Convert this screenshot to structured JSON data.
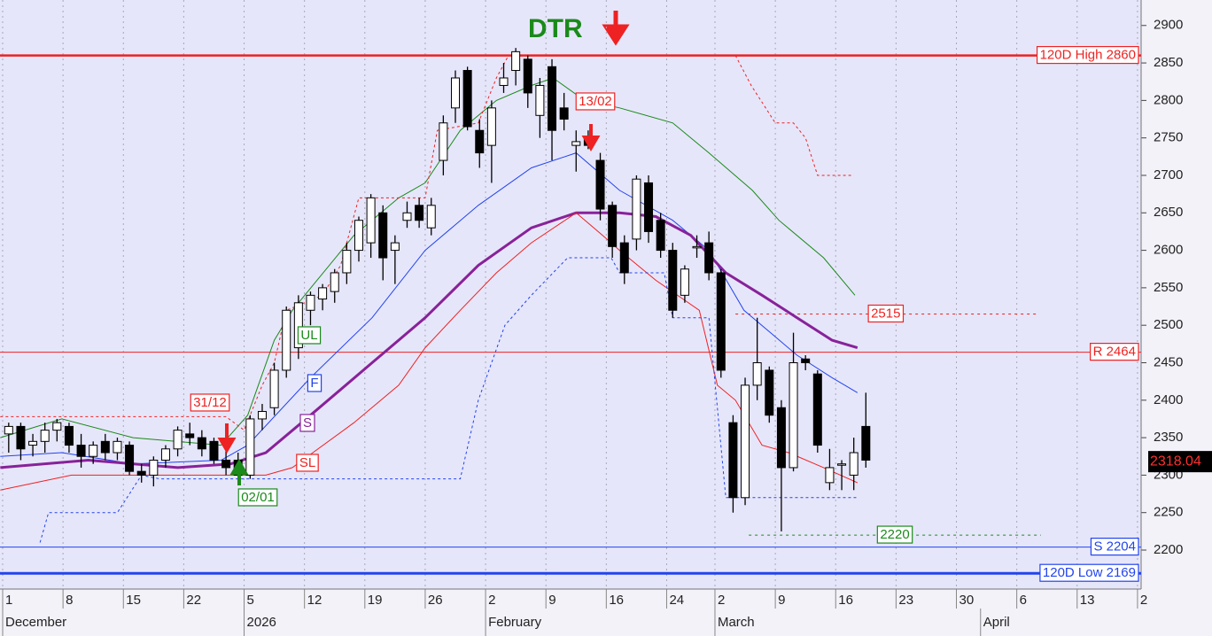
{
  "chart_data": {
    "type": "candlestick",
    "signal": "DTR",
    "ylim": [
      2148,
      2934
    ],
    "yticks": [
      2200,
      2250,
      2300,
      2350,
      2400,
      2450,
      2500,
      2550,
      2600,
      2650,
      2700,
      2750,
      2800,
      2850,
      2900
    ],
    "xlim": [
      -0.72,
      93.8
    ],
    "xticks": [
      {
        "value": -0.5,
        "label": "1"
      },
      {
        "value": 4.5,
        "label": "8"
      },
      {
        "value": 9.5,
        "label": "15"
      },
      {
        "value": 14.5,
        "label": "22"
      },
      {
        "value": 19.5,
        "label": "5"
      },
      {
        "value": 24.5,
        "label": "12"
      },
      {
        "value": 29.5,
        "label": "19"
      },
      {
        "value": 34.5,
        "label": "26"
      },
      {
        "value": 39.5,
        "label": "2"
      },
      {
        "value": 44.5,
        "label": "9"
      },
      {
        "value": 49.5,
        "label": "16"
      },
      {
        "value": 54.5,
        "label": "24"
      },
      {
        "value": 58.5,
        "label": "2"
      },
      {
        "value": 63.5,
        "label": "9"
      },
      {
        "value": 68.5,
        "label": "16"
      },
      {
        "value": 73.5,
        "label": "23"
      },
      {
        "value": 78.5,
        "label": "30"
      },
      {
        "value": 83.5,
        "label": "6"
      },
      {
        "value": 88.5,
        "label": "13"
      },
      {
        "value": 93.5,
        "label": "2"
      }
    ],
    "months": [
      {
        "value": -0.5,
        "label": "December"
      },
      {
        "value": 19.5,
        "label": "2026"
      },
      {
        "value": 39.5,
        "label": "February"
      },
      {
        "value": 58.5,
        "label": "March"
      },
      {
        "value": 80.5,
        "label": "April"
      }
    ],
    "grid": true,
    "ohlc": [
      [
        2355,
        2370,
        2330,
        2365
      ],
      [
        2365,
        2370,
        2320,
        2335
      ],
      [
        2340,
        2355,
        2325,
        2345
      ],
      [
        2345,
        2370,
        2330,
        2360
      ],
      [
        2360,
        2375,
        2345,
        2370
      ],
      [
        2365,
        2370,
        2330,
        2340
      ],
      [
        2340,
        2355,
        2310,
        2325
      ],
      [
        2325,
        2345,
        2315,
        2340
      ],
      [
        2345,
        2355,
        2320,
        2330
      ],
      [
        2330,
        2350,
        2320,
        2345
      ],
      [
        2340,
        2345,
        2300,
        2305
      ],
      [
        2305,
        2315,
        2290,
        2300
      ],
      [
        2300,
        2325,
        2285,
        2320
      ],
      [
        2320,
        2340,
        2310,
        2335
      ],
      [
        2335,
        2365,
        2325,
        2360
      ],
      [
        2355,
        2370,
        2340,
        2350
      ],
      [
        2350,
        2360,
        2325,
        2335
      ],
      [
        2345,
        2350,
        2315,
        2320
      ],
      [
        2320,
        2340,
        2300,
        2310
      ],
      [
        2320,
        2330,
        2290,
        2300
      ],
      [
        2300,
        2380,
        2295,
        2375
      ],
      [
        2375,
        2395,
        2360,
        2385
      ],
      [
        2390,
        2450,
        2380,
        2440
      ],
      [
        2440,
        2525,
        2430,
        2520
      ],
      [
        2470,
        2540,
        2455,
        2530
      ],
      [
        2520,
        2545,
        2500,
        2540
      ],
      [
        2535,
        2555,
        2520,
        2550
      ],
      [
        2545,
        2575,
        2530,
        2570
      ],
      [
        2570,
        2610,
        2555,
        2600
      ],
      [
        2600,
        2645,
        2585,
        2640
      ],
      [
        2610,
        2675,
        2590,
        2670
      ],
      [
        2650,
        2660,
        2560,
        2590
      ],
      [
        2600,
        2620,
        2555,
        2610
      ],
      [
        2640,
        2665,
        2630,
        2650
      ],
      [
        2660,
        2670,
        2630,
        2640
      ],
      [
        2630,
        2670,
        2620,
        2660
      ],
      [
        2720,
        2780,
        2700,
        2770
      ],
      [
        2790,
        2840,
        2770,
        2830
      ],
      [
        2840,
        2845,
        2760,
        2765
      ],
      [
        2760,
        2775,
        2710,
        2730
      ],
      [
        2740,
        2800,
        2690,
        2790
      ],
      [
        2820,
        2850,
        2810,
        2830
      ],
      [
        2840,
        2870,
        2820,
        2865
      ],
      [
        2855,
        2860,
        2790,
        2810
      ],
      [
        2780,
        2830,
        2750,
        2820
      ],
      [
        2845,
        2855,
        2720,
        2760
      ],
      [
        2790,
        2810,
        2760,
        2775
      ],
      [
        2740,
        2760,
        2705,
        2745
      ],
      [
        2750,
        2760,
        2735,
        2740
      ],
      [
        2720,
        2730,
        2640,
        2655
      ],
      [
        2660,
        2665,
        2590,
        2605
      ],
      [
        2610,
        2620,
        2555,
        2570
      ],
      [
        2615,
        2700,
        2600,
        2695
      ],
      [
        2690,
        2700,
        2610,
        2625
      ],
      [
        2640,
        2650,
        2590,
        2600
      ],
      [
        2600,
        2610,
        2510,
        2520
      ],
      [
        2540,
        2580,
        2530,
        2575
      ],
      [
        2605,
        2620,
        2590,
        2605
      ],
      [
        2610,
        2625,
        2560,
        2570
      ],
      [
        2570,
        2575,
        2430,
        2440
      ],
      [
        2370,
        2380,
        2250,
        2270
      ],
      [
        2270,
        2430,
        2260,
        2420
      ],
      [
        2420,
        2510,
        2400,
        2450
      ],
      [
        2440,
        2445,
        2370,
        2380
      ],
      [
        2390,
        2400,
        2225,
        2310
      ],
      [
        2310,
        2490,
        2305,
        2450
      ],
      [
        2455,
        2460,
        2440,
        2450
      ],
      [
        2435,
        2440,
        2330,
        2340
      ],
      [
        2290,
        2335,
        2280,
        2310
      ],
      [
        2315,
        2320,
        2280,
        2315
      ],
      [
        2300,
        2350,
        2280,
        2330
      ],
      [
        2365,
        2410,
        2310,
        2320
      ]
    ],
    "series": [
      {
        "name": "UL",
        "color": "#1a8a1a",
        "width": 1,
        "x": [
          -0.7,
          4.4,
          10.3,
          17.6,
          19.8,
          22,
          23.5,
          28.6,
          32.3,
          34.5,
          37.4,
          40.4,
          43.3,
          45.1,
          47.7,
          50.6,
          55,
          58,
          61.6,
          63.8,
          67.5,
          70.1
        ],
        "values": [
          2350,
          2375,
          2350,
          2340,
          2380,
          2480,
          2520,
          2620,
          2670,
          2690,
          2760,
          2800,
          2820,
          2830,
          2800,
          2790,
          2770,
          2730,
          2680,
          2640,
          2590,
          2540
        ]
      },
      {
        "name": "F",
        "color": "#2244ee",
        "width": 1,
        "x": [
          -0.7,
          4.4,
          10.3,
          17.6,
          19.8,
          25,
          30.1,
          34.5,
          38.9,
          43.3,
          47,
          50.6,
          55,
          58,
          60.9,
          63.1,
          65.3,
          68.2,
          70.3
        ],
        "values": [
          2325,
          2330,
          2315,
          2320,
          2340,
          2430,
          2510,
          2600,
          2660,
          2710,
          2730,
          2680,
          2640,
          2600,
          2520,
          2490,
          2460,
          2430,
          2410
        ]
      },
      {
        "name": "S",
        "color": "#882299",
        "width": 3,
        "x": [
          -0.7,
          6.6,
          14,
          18.4,
          21.3,
          25,
          30.1,
          34.5,
          38.9,
          43.3,
          47,
          50.6,
          53.6,
          56.5,
          59.4,
          62.4,
          65.3,
          68.2,
          70.3
        ],
        "values": [
          2310,
          2320,
          2310,
          2315,
          2330,
          2380,
          2450,
          2510,
          2580,
          2630,
          2650,
          2650,
          2645,
          2620,
          2570,
          2540,
          2510,
          2480,
          2470
        ]
      },
      {
        "name": "SL",
        "color": "#ee2222",
        "width": 1,
        "x": [
          -0.7,
          5.2,
          10.3,
          17.6,
          21.3,
          23.5,
          28.6,
          32.3,
          34.5,
          37.4,
          40.4,
          43.3,
          47,
          49.2,
          50.6,
          53.6,
          57.2,
          58.7,
          60.2,
          62.4,
          64.6,
          67.5,
          70.3
        ],
        "values": [
          2280,
          2300,
          2300,
          2300,
          2300,
          2310,
          2370,
          2420,
          2470,
          2520,
          2570,
          2610,
          2650,
          2620,
          2600,
          2560,
          2520,
          2420,
          2400,
          2340,
          2330,
          2310,
          2290
        ]
      },
      {
        "color": "#ee2222",
        "width": 1,
        "dash": true,
        "x": [
          -0.7,
          18,
          19.5,
          21,
          22,
          23,
          26,
          27.5,
          29,
          34.5,
          35.5,
          38.9,
          40.4,
          41.4,
          null,
          60.2,
          61.5,
          63.5,
          65,
          66,
          67,
          70
        ],
        "values": [
          2378,
          2378,
          2360,
          2420,
          2450,
          2520,
          2540,
          2580,
          2670,
          2670,
          2760,
          2770,
          2830,
          2860,
          null,
          2860,
          2820,
          2770,
          2770,
          2750,
          2700,
          2700
        ]
      },
      {
        "color": "#2244ee",
        "width": 1,
        "dash": true,
        "x": [
          2.6,
          3.3,
          9,
          11,
          12.5,
          37.4,
          38.9,
          41.1,
          43.3,
          46.3,
          49.9,
          50.6,
          54.3,
          55,
          58,
          59.4,
          70.3
        ],
        "values": [
          2210,
          2250,
          2250,
          2300,
          2295,
          2295,
          2400,
          2500,
          2540,
          2590,
          2590,
          2570,
          2570,
          2510,
          2510,
          2270,
          2270
        ]
      }
    ],
    "levels": [
      {
        "label": "120D High 2860",
        "value": 2860,
        "color": "#ee2222",
        "width": 2.5
      },
      {
        "label": "R 2464",
        "value": 2464,
        "color": "#ee2222",
        "width": 1
      },
      {
        "label": "S 2204",
        "value": 2204,
        "color": "#2244ee",
        "width": 1
      },
      {
        "label": "120D Low 2169",
        "value": 2169,
        "color": "#2244ee",
        "width": 3
      },
      {
        "label": "2515",
        "value": 2515,
        "color": "#ee2222",
        "width": 1,
        "dash": true,
        "x": [
          60.2,
          85.1
        ]
      },
      {
        "label": "2220",
        "value": 2220,
        "color": "#1a8a1a",
        "width": 1,
        "dash": true,
        "x": [
          61.3,
          85.5
        ]
      }
    ],
    "annotations": [
      {
        "text": "13/02",
        "color": "#ee2222"
      },
      {
        "text": "31/12",
        "color": "#ee2222"
      },
      {
        "text": "02/01",
        "color": "#1a8a1a"
      }
    ],
    "last": 2318.04
  }
}
